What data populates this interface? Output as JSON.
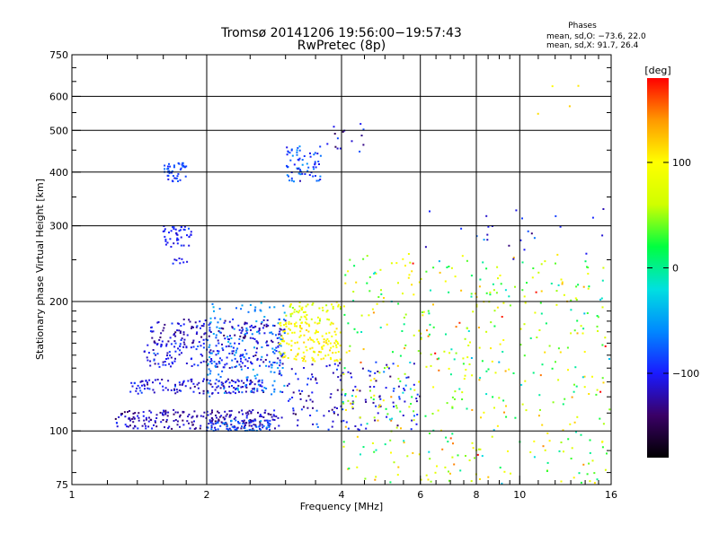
{
  "chart_data": {
    "type": "scatter",
    "title": "Tromsø 20141206 19:56:00−19:57:43",
    "subtitle": "RwPretec (8p)",
    "stats": {
      "heading": "Phases",
      "line_o": "mean, sd,O: −73.6, 22.0",
      "line_x": "mean, sd,X:  91.7, 26.4"
    },
    "xlabel": "Frequency [MHz]",
    "ylabel": "Stationary phase Virtual Height [km]",
    "x_scale": "log",
    "y_scale": "log",
    "xlim": [
      1,
      16
    ],
    "ylim": [
      75,
      750
    ],
    "xticks": [
      1,
      2,
      4,
      6,
      8,
      10,
      16
    ],
    "xtick_labels": [
      "1",
      "2",
      "4",
      "6",
      "8",
      "10",
      "16"
    ],
    "yticks": [
      75,
      100,
      200,
      300,
      400,
      500,
      600,
      750
    ],
    "ytick_labels": [
      "75",
      "100",
      "200",
      "300",
      "400",
      "500",
      "600",
      "750"
    ],
    "grid": true,
    "colorbar": {
      "label": "[deg]",
      "min": -180,
      "max": 180,
      "ticks": [
        100,
        0,
        -100
      ],
      "tick_labels": [
        "100",
        "0",
        "−100"
      ],
      "colors": [
        "#000000",
        "#3a0066",
        "#1a1aff",
        "#0088ff",
        "#00e0e0",
        "#00ff40",
        "#d0ff00",
        "#ffff00",
        "#ff9900",
        "#ff0000"
      ]
    },
    "clusters": [
      {
        "fmin": 1.25,
        "fmax": 2.9,
        "hmin": 101,
        "hmax": 112,
        "phase": -120,
        "phase_sd": 22,
        "count": 240
      },
      {
        "fmin": 2.0,
        "fmax": 2.8,
        "hmin": 100,
        "hmax": 106,
        "phase": -75,
        "phase_sd": 22,
        "count": 60
      },
      {
        "fmin": 1.35,
        "fmax": 2.7,
        "hmin": 122,
        "hmax": 132,
        "phase": -110,
        "phase_sd": 25,
        "count": 150
      },
      {
        "fmin": 1.45,
        "fmax": 3.0,
        "hmin": 140,
        "hmax": 160,
        "phase": -105,
        "phase_sd": 25,
        "count": 170
      },
      {
        "fmin": 1.5,
        "fmax": 3.0,
        "hmin": 160,
        "hmax": 182,
        "phase": -115,
        "phase_sd": 25,
        "count": 150
      },
      {
        "fmin": 2.0,
        "fmax": 3.0,
        "hmin": 120,
        "hmax": 200,
        "phase": -60,
        "phase_sd": 20,
        "count": 140
      },
      {
        "fmin": 2.9,
        "fmax": 4.0,
        "hmin": 145,
        "hmax": 180,
        "phase": 100,
        "phase_sd": 20,
        "count": 150
      },
      {
        "fmin": 3.0,
        "fmax": 4.0,
        "hmin": 180,
        "hmax": 200,
        "phase": 80,
        "phase_sd": 25,
        "count": 50
      },
      {
        "fmin": 2.9,
        "fmax": 6.0,
        "hmin": 100,
        "hmax": 145,
        "phase": -110,
        "phase_sd": 35,
        "count": 150
      },
      {
        "fmin": 1.6,
        "fmax": 1.8,
        "hmin": 380,
        "hmax": 420,
        "phase": -85,
        "phase_sd": 15,
        "count": 45
      },
      {
        "fmin": 1.6,
        "fmax": 1.85,
        "hmin": 268,
        "hmax": 300,
        "phase": -100,
        "phase_sd": 15,
        "count": 45
      },
      {
        "fmin": 1.65,
        "fmax": 1.85,
        "hmin": 245,
        "hmax": 252,
        "phase": -105,
        "phase_sd": 10,
        "count": 8
      },
      {
        "fmin": 3.0,
        "fmax": 3.6,
        "hmin": 380,
        "hmax": 460,
        "phase": -80,
        "phase_sd": 25,
        "count": 70
      },
      {
        "fmin": 3.6,
        "fmax": 4.5,
        "hmin": 440,
        "hmax": 520,
        "phase": -110,
        "phase_sd": 30,
        "count": 15
      },
      {
        "fmin": 4.0,
        "fmax": 16.0,
        "hmin": 75,
        "hmax": 260,
        "phase": 60,
        "phase_sd": 90,
        "count": 500
      },
      {
        "fmin": 6.0,
        "fmax": 16.0,
        "hmin": 250,
        "hmax": 330,
        "phase": -100,
        "phase_sd": 40,
        "count": 25
      },
      {
        "fmin": 10.0,
        "fmax": 14.0,
        "hmin": 500,
        "hmax": 650,
        "phase": 110,
        "phase_sd": 10,
        "count": 4
      }
    ]
  }
}
